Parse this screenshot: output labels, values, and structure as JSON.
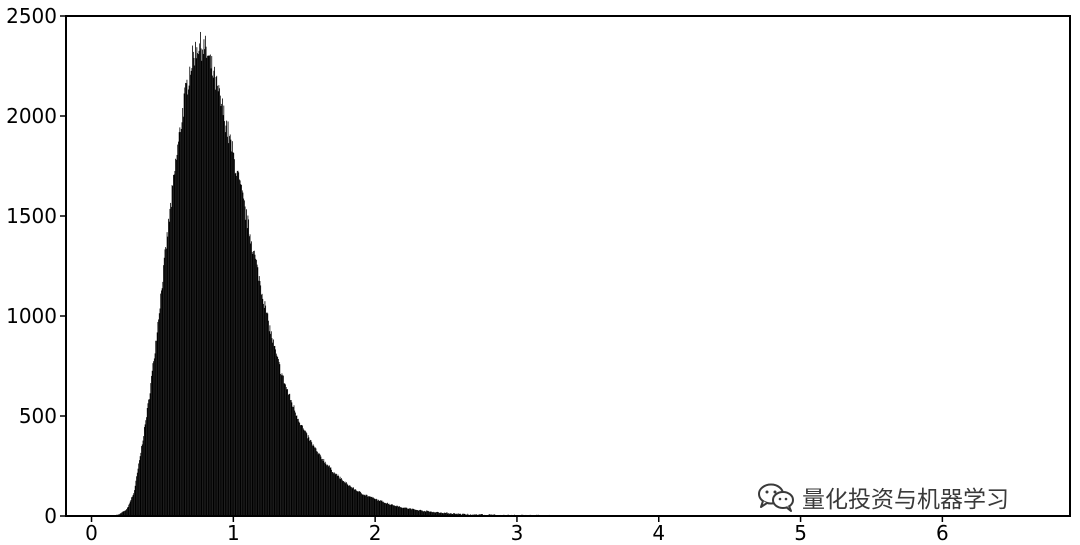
{
  "watermark": {
    "icon": "wechat-icon",
    "text": "量化投资与机器学习"
  },
  "chart_data": {
    "type": "histogram",
    "title": "",
    "xlabel": "",
    "ylabel": "",
    "xlim": [
      -0.18,
      6.9
    ],
    "ylim": [
      0,
      2500
    ],
    "xticks": [
      0,
      1,
      2,
      3,
      4,
      5,
      6
    ],
    "yticks": [
      0,
      500,
      1000,
      1500,
      2000,
      2500
    ],
    "xtick_labels": [
      "0",
      "1",
      "2",
      "3",
      "4",
      "5",
      "6"
    ],
    "ytick_labels": [
      "0",
      "500",
      "1000",
      "1500",
      "2000",
      "2500"
    ],
    "grid": false,
    "color": "#000000",
    "curve_points": [
      [
        0.15,
        0
      ],
      [
        0.2,
        10
      ],
      [
        0.25,
        35
      ],
      [
        0.3,
        120
      ],
      [
        0.35,
        330
      ],
      [
        0.4,
        560
      ],
      [
        0.45,
        850
      ],
      [
        0.5,
        1180
      ],
      [
        0.55,
        1500
      ],
      [
        0.6,
        1800
      ],
      [
        0.65,
        2060
      ],
      [
        0.7,
        2260
      ],
      [
        0.75,
        2360
      ],
      [
        0.8,
        2340
      ],
      [
        0.85,
        2230
      ],
      [
        0.9,
        2100
      ],
      [
        0.95,
        1960
      ],
      [
        1.0,
        1800
      ],
      [
        1.05,
        1640
      ],
      [
        1.1,
        1470
      ],
      [
        1.15,
        1300
      ],
      [
        1.2,
        1130
      ],
      [
        1.25,
        960
      ],
      [
        1.3,
        810
      ],
      [
        1.35,
        690
      ],
      [
        1.4,
        590
      ],
      [
        1.45,
        500
      ],
      [
        1.5,
        425
      ],
      [
        1.6,
        310
      ],
      [
        1.7,
        225
      ],
      [
        1.8,
        160
      ],
      [
        1.9,
        115
      ],
      [
        2.0,
        85
      ],
      [
        2.1,
        60
      ],
      [
        2.2,
        42
      ],
      [
        2.3,
        30
      ],
      [
        2.4,
        21
      ],
      [
        2.5,
        15
      ],
      [
        2.6,
        10
      ],
      [
        2.8,
        6
      ],
      [
        3.0,
        4
      ],
      [
        3.3,
        2
      ],
      [
        3.6,
        1
      ],
      [
        4.0,
        0.5
      ],
      [
        5.0,
        0.2
      ],
      [
        5.5,
        0
      ]
    ]
  }
}
